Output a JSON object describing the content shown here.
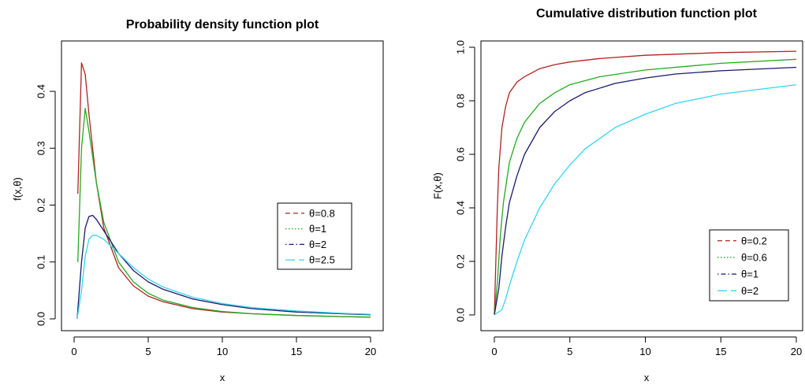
{
  "chart_data": [
    {
      "type": "line",
      "title": "Probability density function plot",
      "xlabel": "x",
      "ylabel": "f(x,θ)",
      "xlim": [
        0,
        20
      ],
      "ylim": [
        0,
        0.45
      ],
      "xticks": [
        0,
        5,
        10,
        15,
        20
      ],
      "xtick_labels": [
        "0",
        "5",
        "10",
        "15",
        "20"
      ],
      "yticks": [
        0.0,
        0.1,
        0.2,
        0.3,
        0.4
      ],
      "ytick_labels": [
        "0.0",
        "0.1",
        "0.2",
        "0.3",
        "0.4"
      ],
      "legend_position": "right",
      "series": [
        {
          "name": "θ=0.8",
          "color": "#b22222",
          "dash": "dashed",
          "x": [
            0.25,
            0.5,
            0.75,
            1,
            1.5,
            2,
            3,
            4,
            5,
            6,
            8,
            10,
            12,
            15,
            18,
            20
          ],
          "y": [
            0.22,
            0.45,
            0.43,
            0.36,
            0.24,
            0.16,
            0.09,
            0.058,
            0.04,
            0.03,
            0.018,
            0.012,
            0.009,
            0.006,
            0.004,
            0.003
          ]
        },
        {
          "name": "θ=1",
          "color": "#22aa22",
          "dash": "dotted",
          "x": [
            0.25,
            0.5,
            0.75,
            1,
            1.5,
            2,
            3,
            4,
            5,
            6,
            8,
            10,
            12,
            15,
            18,
            20
          ],
          "y": [
            0.1,
            0.3,
            0.37,
            0.33,
            0.24,
            0.17,
            0.1,
            0.065,
            0.045,
            0.033,
            0.02,
            0.013,
            0.009,
            0.006,
            0.004,
            0.003
          ]
        },
        {
          "name": "θ=2",
          "color": "#1a1a6e",
          "dash": "dotdash",
          "x": [
            0.2,
            0.5,
            0.75,
            1,
            1.25,
            1.5,
            2,
            3,
            4,
            5,
            6,
            8,
            10,
            12,
            15,
            18,
            20
          ],
          "y": [
            0.0,
            0.1,
            0.16,
            0.18,
            0.182,
            0.175,
            0.155,
            0.115,
            0.085,
            0.065,
            0.052,
            0.035,
            0.025,
            0.018,
            0.012,
            0.009,
            0.007
          ]
        },
        {
          "name": "θ=2.5",
          "color": "#33d6f0",
          "dash": "longdash",
          "x": [
            0.2,
            0.5,
            0.75,
            1,
            1.25,
            1.5,
            2,
            3,
            4,
            5,
            6,
            8,
            10,
            12,
            15,
            18,
            20
          ],
          "y": [
            0.0,
            0.05,
            0.11,
            0.14,
            0.147,
            0.147,
            0.14,
            0.115,
            0.09,
            0.07,
            0.056,
            0.038,
            0.027,
            0.02,
            0.014,
            0.01,
            0.008
          ]
        }
      ]
    },
    {
      "type": "line",
      "title": "Cumulative distribution function plot",
      "xlabel": "x",
      "ylabel": "F(x,θ)",
      "xlim": [
        0,
        20
      ],
      "ylim": [
        0,
        1
      ],
      "xticks": [
        0,
        5,
        10,
        15,
        20
      ],
      "xtick_labels": [
        "0",
        "5",
        "10",
        "15",
        "20"
      ],
      "yticks": [
        0.0,
        0.2,
        0.4,
        0.6,
        0.8,
        1.0
      ],
      "ytick_labels": [
        "0.0",
        "0.2",
        "0.4",
        "0.6",
        "0.8",
        "1.0"
      ],
      "legend_position": "bottom-right",
      "series": [
        {
          "name": "θ=0.2",
          "color": "#b22222",
          "dash": "dashed",
          "x": [
            0,
            0.1,
            0.2,
            0.3,
            0.5,
            0.75,
            1,
            1.5,
            2,
            3,
            4,
            5,
            7,
            10,
            15,
            20
          ],
          "y": [
            0,
            0.2,
            0.4,
            0.55,
            0.7,
            0.78,
            0.83,
            0.87,
            0.89,
            0.92,
            0.935,
            0.945,
            0.958,
            0.97,
            0.98,
            0.985
          ]
        },
        {
          "name": "θ=0.6",
          "color": "#22aa22",
          "dash": "dotted",
          "x": [
            0,
            0.2,
            0.4,
            0.6,
            1,
            1.5,
            2,
            3,
            4,
            5,
            7,
            10,
            15,
            20
          ],
          "y": [
            0,
            0.12,
            0.3,
            0.42,
            0.57,
            0.66,
            0.72,
            0.79,
            0.83,
            0.86,
            0.89,
            0.915,
            0.94,
            0.955
          ]
        },
        {
          "name": "θ=1",
          "color": "#1a1a6e",
          "dash": "dotdash",
          "x": [
            0,
            0.3,
            0.5,
            0.75,
            1,
            1.5,
            2,
            3,
            4,
            5,
            6,
            8,
            10,
            12,
            15,
            20
          ],
          "y": [
            0,
            0.1,
            0.22,
            0.33,
            0.42,
            0.52,
            0.6,
            0.7,
            0.76,
            0.8,
            0.83,
            0.865,
            0.885,
            0.9,
            0.912,
            0.925
          ]
        },
        {
          "name": "θ=2",
          "color": "#33d6f0",
          "dash": "longdash",
          "x": [
            0,
            0.5,
            0.75,
            1,
            1.5,
            2,
            3,
            4,
            5,
            6,
            8,
            10,
            12,
            15,
            20
          ],
          "y": [
            0,
            0.02,
            0.06,
            0.11,
            0.2,
            0.28,
            0.4,
            0.49,
            0.56,
            0.62,
            0.7,
            0.75,
            0.79,
            0.825,
            0.86
          ]
        }
      ]
    }
  ]
}
